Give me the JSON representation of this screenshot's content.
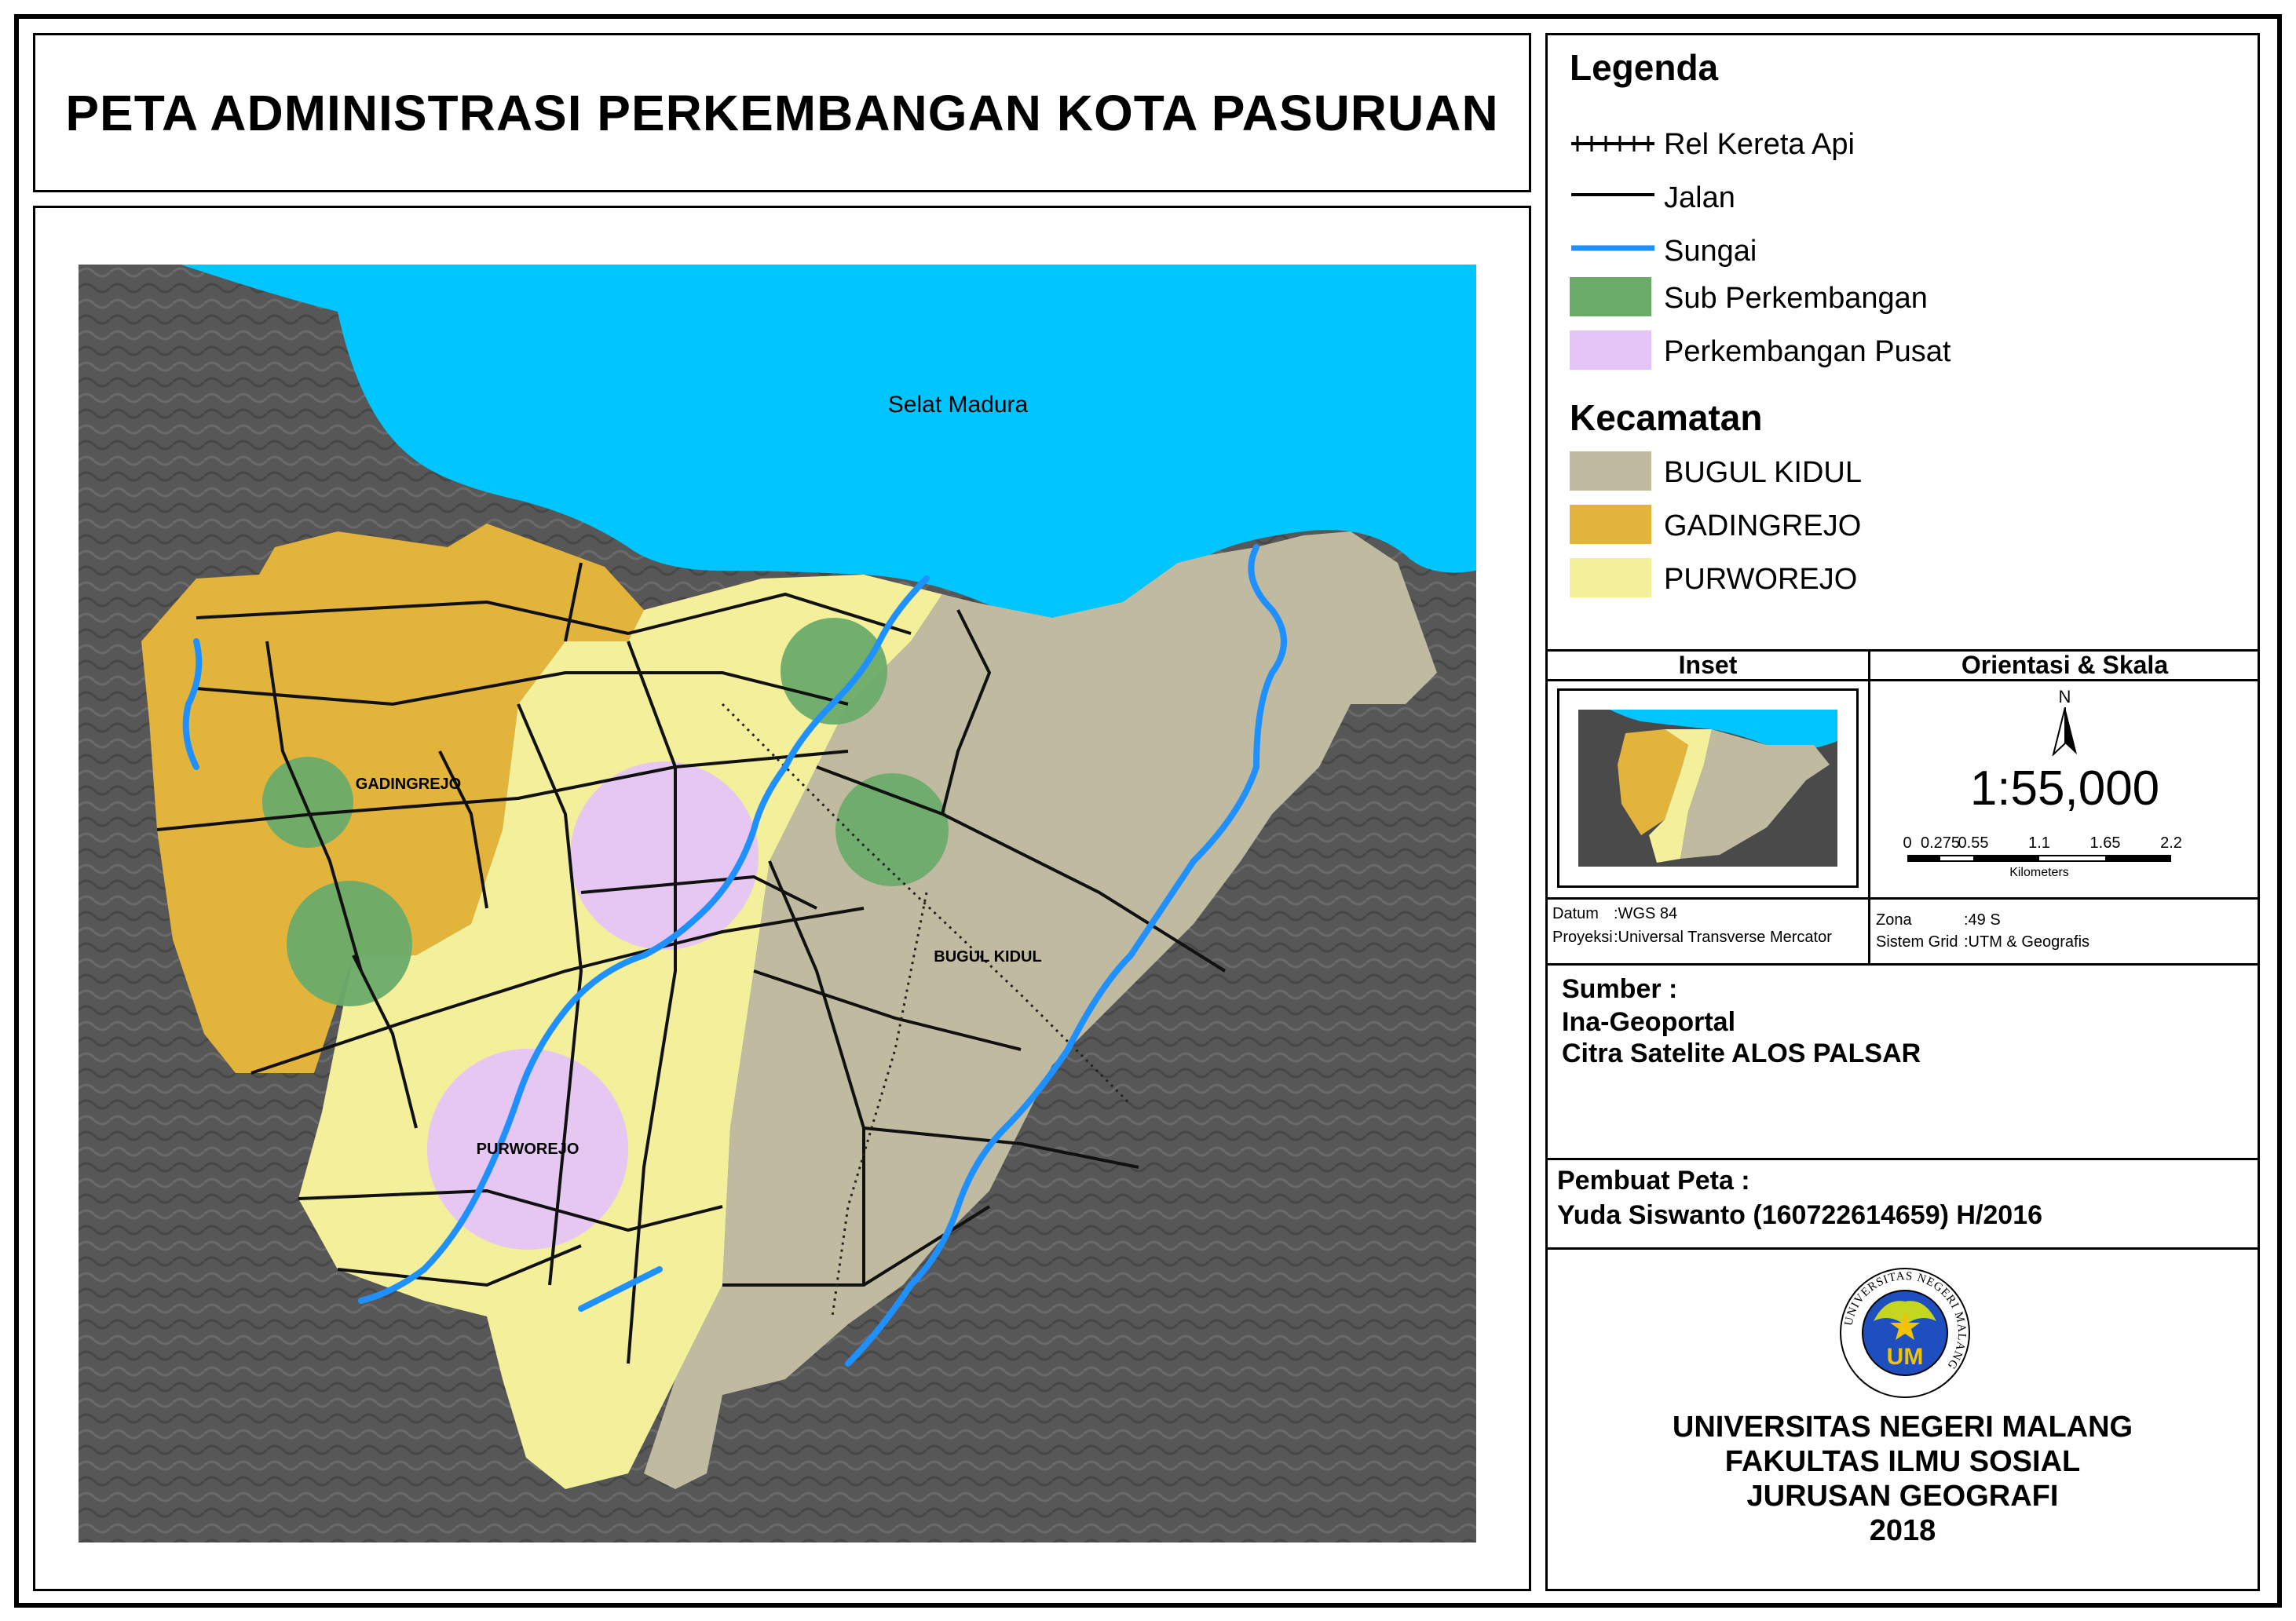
{
  "title": "PETA ADMINISTRASI PERKEMBANGAN KOTA PASURUAN",
  "map": {
    "sea_label": "Selat Madura",
    "district_labels": [
      "GADINGREJO",
      "BUGUL KIDUL",
      "PURWOREJO"
    ]
  },
  "colors": {
    "sea": "#00c5ff",
    "relief": "#5a5a5a",
    "bugul_kidul": "#c0bba0",
    "gadingrejo": "#e3b43b",
    "purworejo": "#f3ef9a",
    "sub_perkembangan": "#6aab6a",
    "perkembangan_pusat": "#e5c4f7",
    "sungai": "#1e90ff"
  },
  "legend": {
    "heading": "Legenda",
    "items": [
      "Rel Kereta Api",
      "Jalan",
      "Sungai",
      "Sub Perkembangan",
      "Perkembangan Pusat"
    ],
    "kecamatan_heading": "Kecamatan",
    "kecamatan": [
      "BUGUL KIDUL",
      "GADINGREJO",
      "PURWOREJO"
    ]
  },
  "inset": {
    "heading": "Inset"
  },
  "orientasi": {
    "heading": "Orientasi & Skala",
    "north": "N",
    "scale_text": "1:55,000",
    "ticks": [
      "0",
      "0.275",
      "0.55",
      "1.1",
      "1.65",
      "2.2"
    ],
    "unit": "Kilometers"
  },
  "projection": {
    "datum_label": "Datum",
    "datum_value": ":WGS 84",
    "proyeksi_label": "Proyeksi",
    "proyeksi_value": ":Universal Transverse Mercator",
    "zona_label": "Zona",
    "zona_value": ":49 S",
    "grid_label": "Sistem Grid",
    "grid_value": ":UTM & Geografis"
  },
  "sumber": {
    "heading": "Sumber :",
    "lines": [
      "Ina-Geoportal",
      "Citra Satelite ALOS PALSAR"
    ]
  },
  "pembuat": {
    "heading": "Pembuat Peta :",
    "name": "Yuda Siswanto (160722614659) H/2016"
  },
  "institution": {
    "seal_text": "UNIVERSITAS NEGERI MALANG",
    "seal_mark": "UM",
    "lines": [
      "UNIVERSITAS NEGERI MALANG",
      "FAKULTAS ILMU SOSIAL",
      "JURUSAN GEOGRAFI",
      "2018"
    ]
  }
}
